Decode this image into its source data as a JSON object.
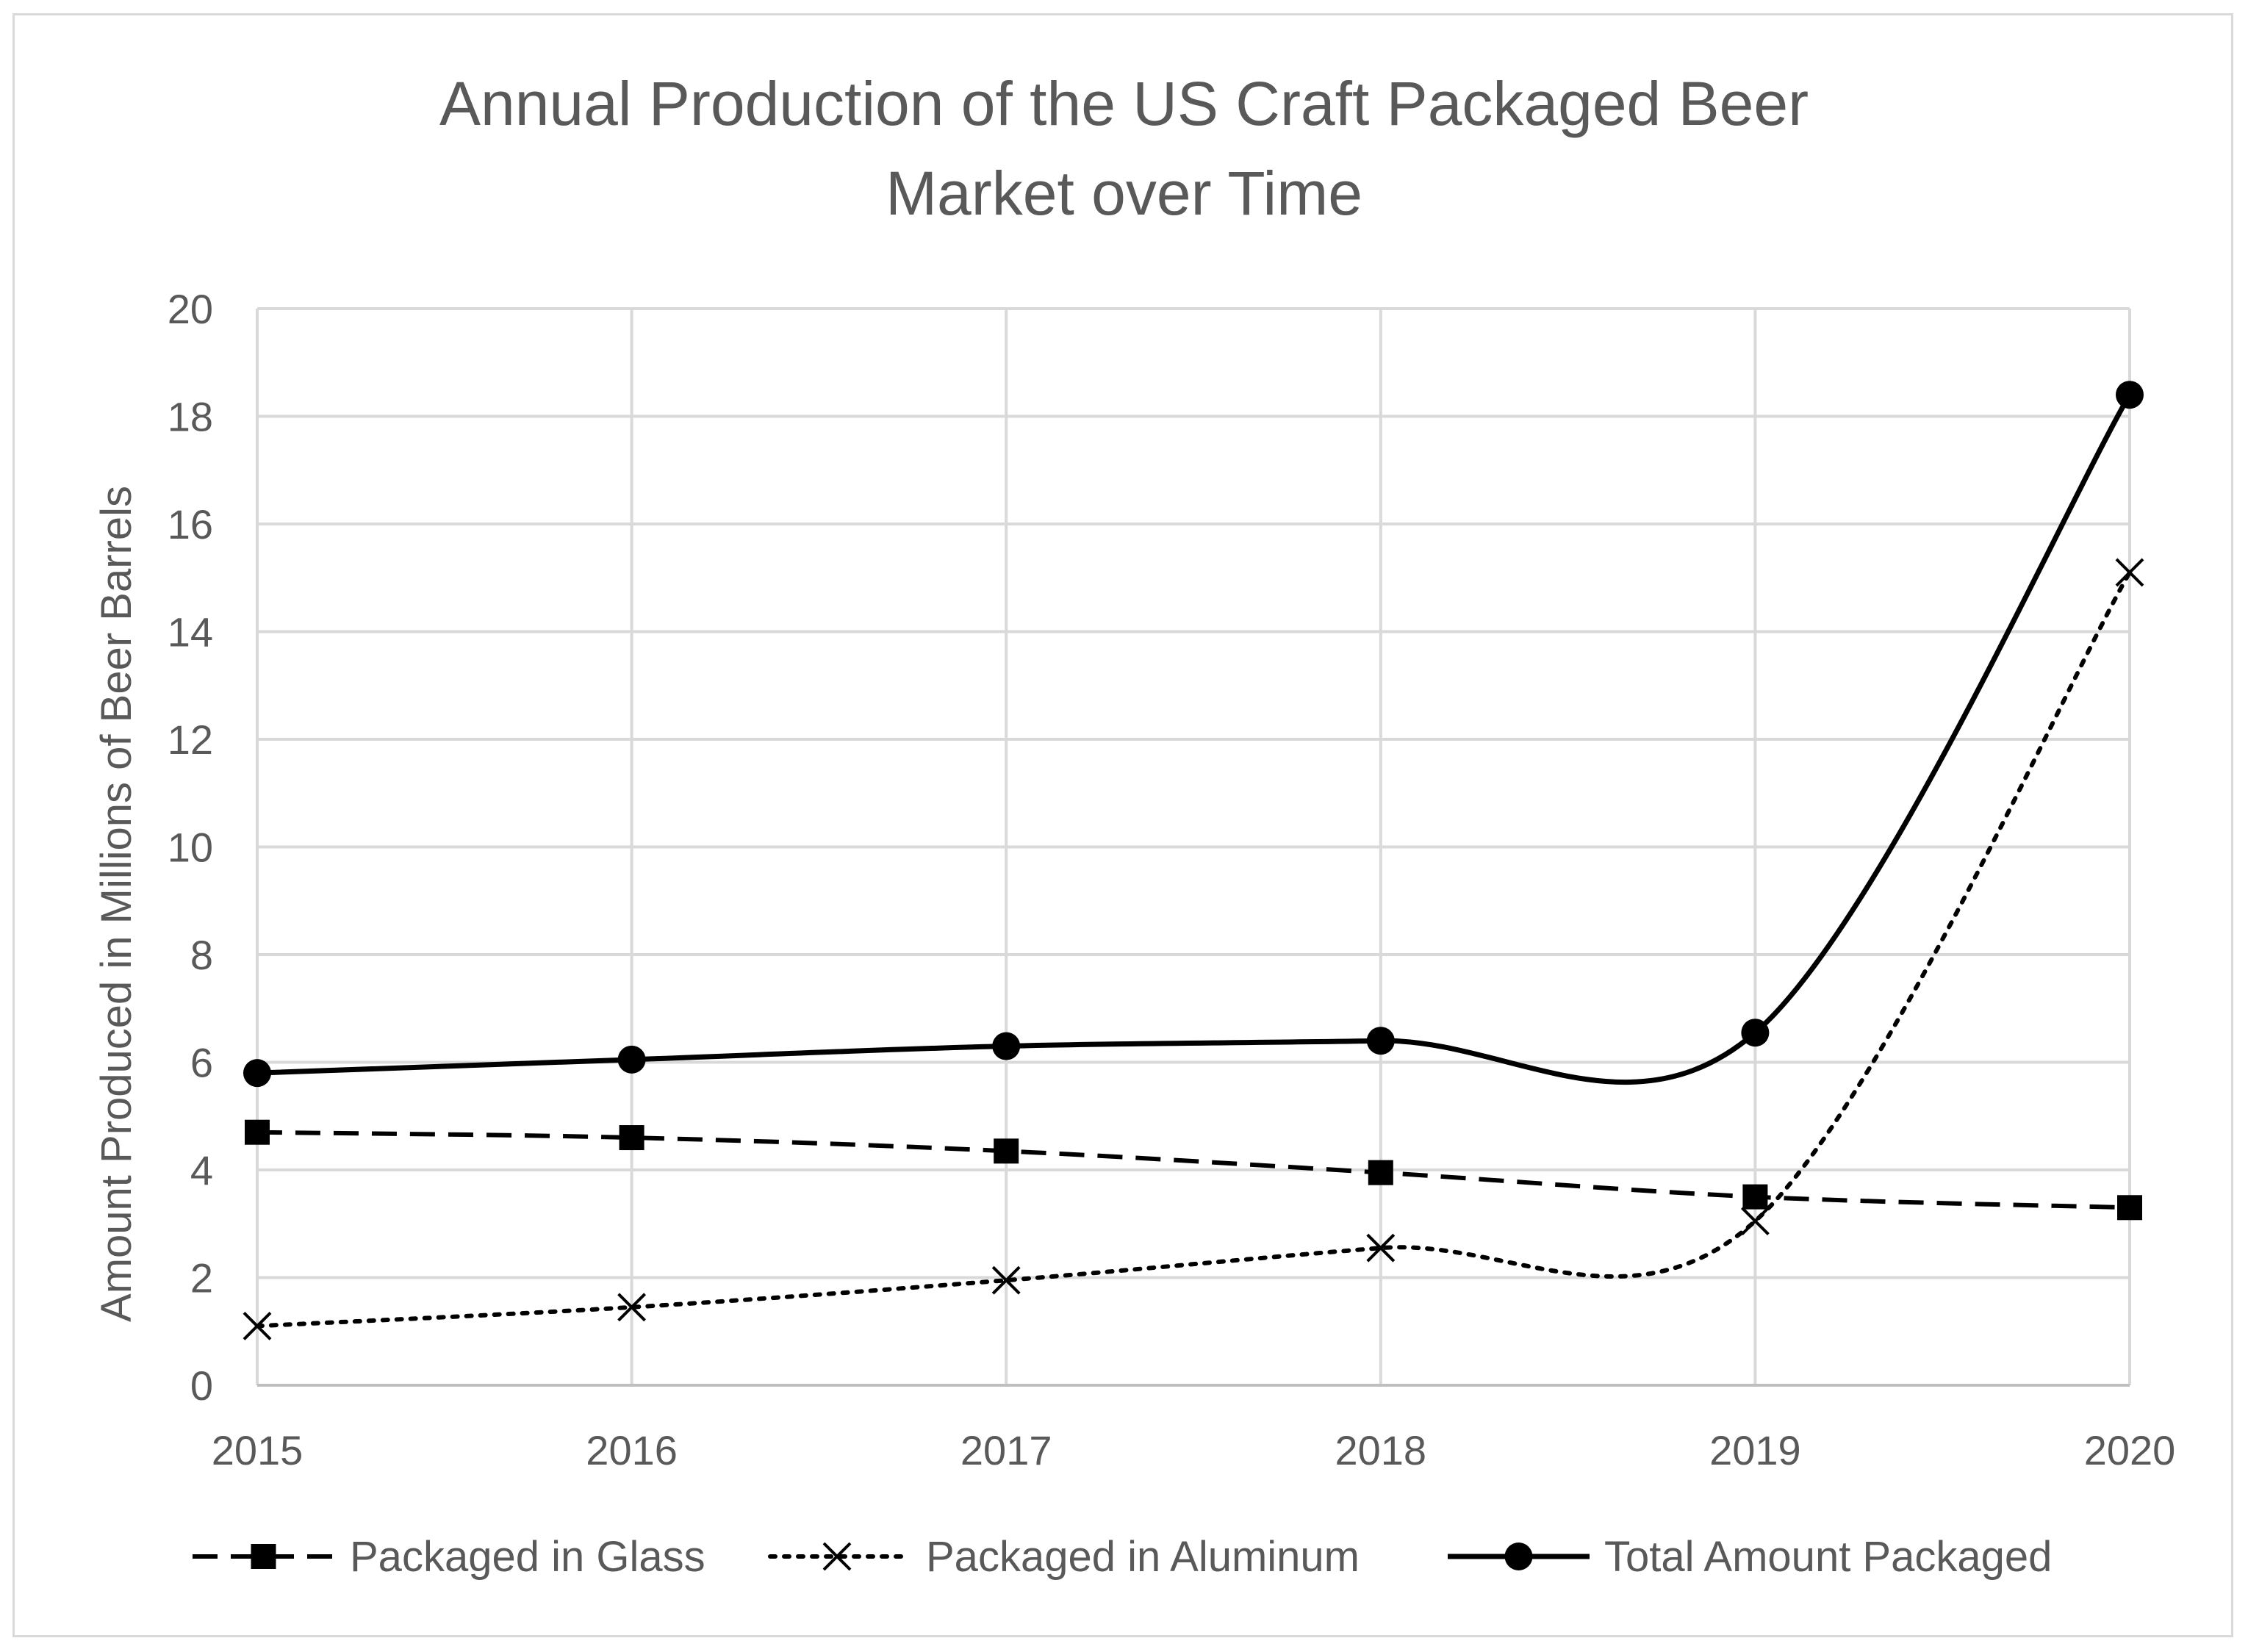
{
  "chart_data": {
    "type": "line",
    "title_lines": [
      "Annual Production of the US Craft Packaged Beer",
      "Market over Time"
    ],
    "xlabel": "",
    "ylabel": "Amount Produced in Millions of Beer Barrels",
    "categories": [
      "2015",
      "2016",
      "2017",
      "2018",
      "2019",
      "2020"
    ],
    "ylim": [
      0,
      20
    ],
    "yticks": [
      "0",
      "2",
      "4",
      "6",
      "8",
      "10",
      "12",
      "14",
      "16",
      "18",
      "20"
    ],
    "grid": true,
    "legend_position": "bottom",
    "series": [
      {
        "name": "Packaged in Glass",
        "values": [
          4.7,
          4.6,
          4.35,
          3.95,
          3.5,
          3.3
        ],
        "line_style": "dashed",
        "marker": "square",
        "color": "#000000"
      },
      {
        "name": "Packaged in Aluminum",
        "values": [
          1.1,
          1.45,
          1.95,
          2.55,
          3.05,
          15.1
        ],
        "line_style": "dotted",
        "marker": "x",
        "color": "#000000"
      },
      {
        "name": "Total Amount Packaged",
        "values": [
          5.8,
          6.05,
          6.3,
          6.4,
          6.55,
          18.4
        ],
        "line_style": "solid",
        "marker": "circle",
        "color": "#000000"
      }
    ],
    "colors": {
      "grid": "#d9d9d9",
      "text": "#595959",
      "frame": "#d9d9d9"
    }
  }
}
